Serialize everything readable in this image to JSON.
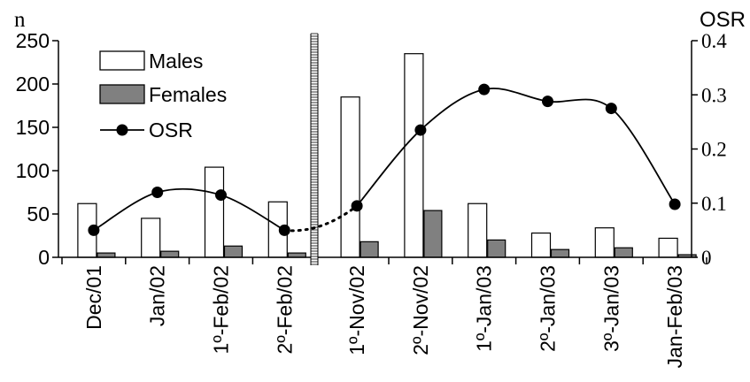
{
  "chart_data": {
    "type": "bar",
    "categories": [
      "Dec/01",
      "Jan/02",
      "1º-Feb/02",
      "2º-Feb/02",
      "1º-Nov/02",
      "2º-Nov/02",
      "1º-Jan/03",
      "2º-Jan/03",
      "3º-Jan/03",
      "Jan-Feb/03"
    ],
    "series": [
      {
        "name": "Males",
        "axis": "left",
        "values": [
          62,
          45,
          104,
          64,
          185,
          235,
          62,
          28,
          34,
          22
        ]
      },
      {
        "name": "Females",
        "axis": "left",
        "values": [
          5,
          7,
          13,
          5,
          18,
          54,
          20,
          9,
          11,
          3
        ]
      },
      {
        "name": "OSR",
        "axis": "right",
        "type": "line",
        "values": [
          0.05,
          0.12,
          0.115,
          0.05,
          0.095,
          0.235,
          0.31,
          0.288,
          0.275,
          0.098
        ]
      }
    ],
    "ylabel": "n",
    "y2label": "OSR",
    "ylim": [
      0,
      250
    ],
    "y2lim": [
      0,
      0.4
    ],
    "yticks": [
      "0",
      "50",
      "100",
      "150",
      "200",
      "250"
    ],
    "y2ticks": [
      "0",
      "0.1",
      "0.2",
      "0.3",
      "0.4"
    ],
    "legend": {
      "placement": "top-left",
      "items": [
        "Males",
        "Females",
        "OSR"
      ]
    },
    "break_after_category": 3,
    "colors": {
      "males_fill": "#ffffff",
      "females_fill": "#808080",
      "line": "#000000"
    }
  }
}
